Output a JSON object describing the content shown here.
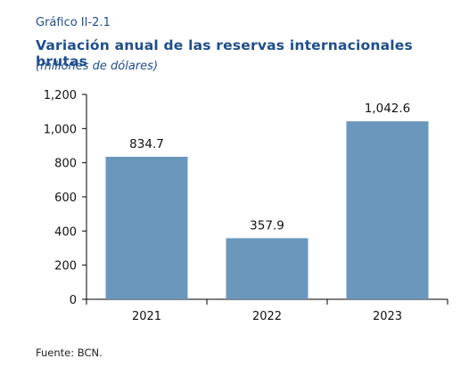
{
  "figure_label": "Gráfico II-2.1",
  "title": "Variación anual de las reservas internacionales brutas",
  "subtitle": "(millones de dólares)",
  "source": "Fuente: BCN.",
  "colors": {
    "bar": "#6b97bd",
    "text_accent": "#1f4e8c",
    "axis": "#000000"
  },
  "chart_data": {
    "type": "bar",
    "categories": [
      "2021",
      "2022",
      "2023"
    ],
    "values": [
      834.7,
      357.9,
      1042.6
    ],
    "data_labels": [
      "834.7",
      "357.9",
      "1,042.6"
    ],
    "yticks": [
      0,
      200,
      400,
      600,
      800,
      1000,
      1200
    ],
    "ytick_labels": [
      "0",
      "200",
      "400",
      "600",
      "800",
      "1,000",
      "1,200"
    ],
    "ylim": [
      0,
      1200
    ],
    "title": "Variación anual de las reservas internacionales brutas",
    "xlabel": "",
    "ylabel": "",
    "grid": false,
    "legend": false
  }
}
